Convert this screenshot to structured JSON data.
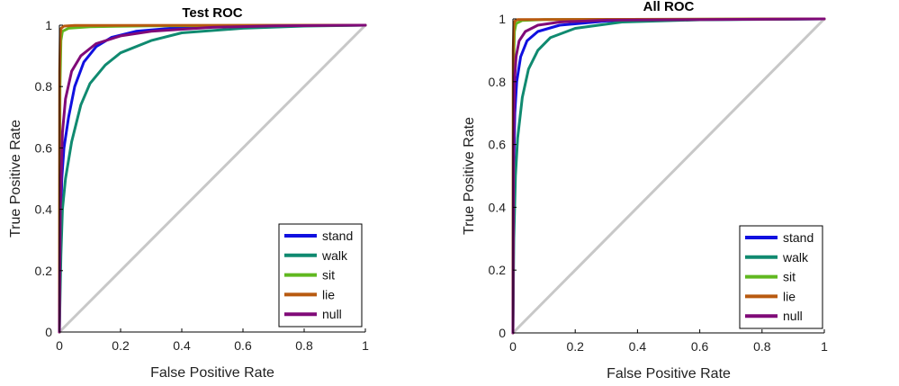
{
  "chart_data": [
    {
      "type": "line",
      "title": "Test ROC",
      "xlabel": "False Positive Rate",
      "ylabel": "True Positive Rate",
      "xlim": [
        0,
        1
      ],
      "ylim": [
        0,
        1
      ],
      "xticks": [
        "0",
        "0.2",
        "0.4",
        "0.6",
        "0.8",
        "1"
      ],
      "yticks": [
        "0",
        "0.2",
        "0.4",
        "0.6",
        "0.8",
        "1"
      ],
      "grid": false,
      "legend_position": "bottom-right",
      "diagonal": {
        "color": "#c8c8c8",
        "points": [
          [
            0,
            0
          ],
          [
            1,
            1
          ]
        ]
      },
      "series": [
        {
          "name": "stand",
          "color": "#1010e0",
          "points": [
            [
              0,
              0
            ],
            [
              0.003,
              0.3
            ],
            [
              0.008,
              0.5
            ],
            [
              0.015,
              0.6
            ],
            [
              0.03,
              0.7
            ],
            [
              0.05,
              0.8
            ],
            [
              0.08,
              0.88
            ],
            [
              0.12,
              0.93
            ],
            [
              0.17,
              0.96
            ],
            [
              0.25,
              0.98
            ],
            [
              0.4,
              0.993
            ],
            [
              0.6,
              0.998
            ],
            [
              1,
              1
            ]
          ]
        },
        {
          "name": "walk",
          "color": "#108a70",
          "points": [
            [
              0,
              0
            ],
            [
              0.005,
              0.25
            ],
            [
              0.01,
              0.4
            ],
            [
              0.02,
              0.5
            ],
            [
              0.04,
              0.62
            ],
            [
              0.07,
              0.74
            ],
            [
              0.1,
              0.81
            ],
            [
              0.15,
              0.87
            ],
            [
              0.2,
              0.91
            ],
            [
              0.3,
              0.95
            ],
            [
              0.4,
              0.975
            ],
            [
              0.6,
              0.99
            ],
            [
              0.8,
              0.997
            ],
            [
              1,
              1
            ]
          ]
        },
        {
          "name": "sit",
          "color": "#60b820",
          "points": [
            [
              0,
              0
            ],
            [
              0.002,
              0.8
            ],
            [
              0.005,
              0.95
            ],
            [
              0.01,
              0.98
            ],
            [
              0.03,
              0.99
            ],
            [
              0.1,
              0.995
            ],
            [
              0.3,
              0.998
            ],
            [
              1,
              1
            ]
          ]
        },
        {
          "name": "lie",
          "color": "#b85a10",
          "points": [
            [
              0,
              0
            ],
            [
              0.001,
              0.85
            ],
            [
              0.003,
              0.97
            ],
            [
              0.006,
              0.99
            ],
            [
              0.015,
              0.997
            ],
            [
              0.05,
              0.999
            ],
            [
              1,
              1
            ]
          ]
        },
        {
          "name": "null",
          "color": "#800a78",
          "points": [
            [
              0,
              0
            ],
            [
              0.003,
              0.4
            ],
            [
              0.01,
              0.65
            ],
            [
              0.02,
              0.76
            ],
            [
              0.04,
              0.85
            ],
            [
              0.07,
              0.9
            ],
            [
              0.12,
              0.94
            ],
            [
              0.2,
              0.965
            ],
            [
              0.3,
              0.98
            ],
            [
              0.5,
              0.993
            ],
            [
              0.7,
              0.998
            ],
            [
              1,
              1
            ]
          ]
        }
      ]
    },
    {
      "type": "line",
      "title": "All  ROC",
      "xlabel": "False Positive Rate",
      "ylabel": "True Positive Rate",
      "xlim": [
        0,
        1
      ],
      "ylim": [
        0,
        1
      ],
      "xticks": [
        "0",
        "0.2",
        "0.4",
        "0.6",
        "0.8",
        "1"
      ],
      "yticks": [
        "0",
        "0.2",
        "0.4",
        "0.6",
        "0.8",
        "1"
      ],
      "grid": false,
      "legend_position": "bottom-right",
      "diagonal": {
        "color": "#c8c8c8",
        "points": [
          [
            0,
            0
          ],
          [
            1,
            1
          ]
        ]
      },
      "series": [
        {
          "name": "stand",
          "color": "#1010e0",
          "points": [
            [
              0,
              0
            ],
            [
              0.002,
              0.5
            ],
            [
              0.006,
              0.7
            ],
            [
              0.012,
              0.8
            ],
            [
              0.025,
              0.88
            ],
            [
              0.045,
              0.93
            ],
            [
              0.08,
              0.96
            ],
            [
              0.15,
              0.98
            ],
            [
              0.3,
              0.993
            ],
            [
              0.6,
              0.998
            ],
            [
              1,
              1
            ]
          ]
        },
        {
          "name": "walk",
          "color": "#108a70",
          "points": [
            [
              0,
              0
            ],
            [
              0.003,
              0.3
            ],
            [
              0.008,
              0.5
            ],
            [
              0.015,
              0.62
            ],
            [
              0.03,
              0.75
            ],
            [
              0.05,
              0.84
            ],
            [
              0.08,
              0.9
            ],
            [
              0.12,
              0.94
            ],
            [
              0.2,
              0.97
            ],
            [
              0.35,
              0.99
            ],
            [
              0.6,
              0.997
            ],
            [
              1,
              1
            ]
          ]
        },
        {
          "name": "sit",
          "color": "#60b820",
          "points": [
            [
              0,
              0
            ],
            [
              0.002,
              0.85
            ],
            [
              0.005,
              0.96
            ],
            [
              0.01,
              0.985
            ],
            [
              0.03,
              0.995
            ],
            [
              0.1,
              0.998
            ],
            [
              1,
              1
            ]
          ]
        },
        {
          "name": "lie",
          "color": "#b85a10",
          "points": [
            [
              0,
              0
            ],
            [
              0.001,
              0.9
            ],
            [
              0.003,
              0.98
            ],
            [
              0.006,
              0.993
            ],
            [
              0.015,
              0.998
            ],
            [
              1,
              1
            ]
          ]
        },
        {
          "name": "null",
          "color": "#800a78",
          "points": [
            [
              0,
              0
            ],
            [
              0.002,
              0.6
            ],
            [
              0.005,
              0.8
            ],
            [
              0.01,
              0.88
            ],
            [
              0.02,
              0.93
            ],
            [
              0.04,
              0.96
            ],
            [
              0.08,
              0.98
            ],
            [
              0.15,
              0.99
            ],
            [
              0.3,
              0.996
            ],
            [
              1,
              1
            ]
          ]
        }
      ]
    }
  ]
}
